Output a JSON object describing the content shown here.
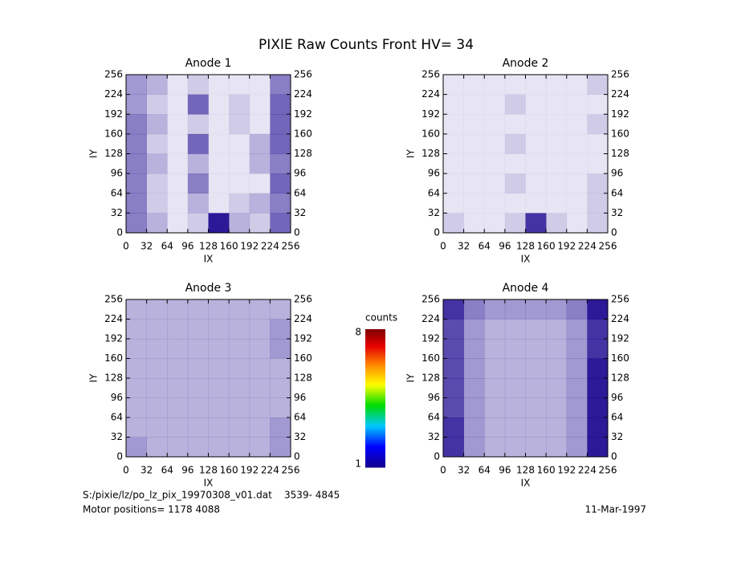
{
  "title": "PIXIE Raw Counts Front HV= 34",
  "chart_data": [
    {
      "type": "heatmap",
      "title": "Anode 1",
      "xlabel": "IX",
      "ylabel": "IY",
      "xlim": [
        0,
        256
      ],
      "ylim": [
        0,
        256
      ],
      "xticks": [
        0,
        32,
        64,
        96,
        128,
        160,
        192,
        224,
        256
      ],
      "yticks": [
        0,
        32,
        64,
        96,
        128,
        160,
        192,
        224,
        256
      ],
      "z": [
        [
          0.5,
          0.3,
          0.1,
          0.2,
          0.9,
          0.3,
          0.2,
          0.6
        ],
        [
          0.5,
          0.2,
          0.1,
          0.3,
          0.1,
          0.2,
          0.3,
          0.5
        ],
        [
          0.5,
          0.2,
          0.1,
          0.5,
          0.1,
          0.1,
          0.1,
          0.6
        ],
        [
          0.5,
          0.3,
          0.1,
          0.3,
          0.1,
          0.1,
          0.3,
          0.5
        ],
        [
          0.5,
          0.2,
          0.1,
          0.6,
          0.1,
          0.1,
          0.3,
          0.6
        ],
        [
          0.5,
          0.3,
          0.1,
          0.2,
          0.1,
          0.2,
          0.1,
          0.6
        ],
        [
          0.4,
          0.2,
          0.1,
          0.6,
          0.1,
          0.2,
          0.1,
          0.6
        ],
        [
          0.4,
          0.3,
          0.1,
          0.2,
          0.1,
          0.1,
          0.1,
          0.5
        ]
      ]
    },
    {
      "type": "heatmap",
      "title": "Anode 2",
      "xlabel": "IX",
      "ylabel": "IY",
      "xlim": [
        0,
        256
      ],
      "ylim": [
        0,
        256
      ],
      "xticks": [
        0,
        32,
        64,
        96,
        128,
        160,
        192,
        224,
        256
      ],
      "yticks": [
        0,
        32,
        64,
        96,
        128,
        160,
        192,
        224,
        256
      ],
      "z": [
        [
          0.2,
          0.1,
          0.1,
          0.2,
          0.8,
          0.2,
          0.1,
          0.2
        ],
        [
          0.1,
          0.1,
          0.1,
          0.1,
          0.1,
          0.1,
          0.1,
          0.2
        ],
        [
          0.1,
          0.1,
          0.1,
          0.2,
          0.1,
          0.1,
          0.1,
          0.2
        ],
        [
          0.1,
          0.1,
          0.1,
          0.1,
          0.1,
          0.1,
          0.1,
          0.1
        ],
        [
          0.1,
          0.1,
          0.1,
          0.2,
          0.1,
          0.1,
          0.1,
          0.1
        ],
        [
          0.1,
          0.1,
          0.1,
          0.1,
          0.1,
          0.1,
          0.1,
          0.2
        ],
        [
          0.1,
          0.1,
          0.1,
          0.2,
          0.1,
          0.1,
          0.1,
          0.1
        ],
        [
          0.1,
          0.1,
          0.1,
          0.1,
          0.1,
          0.1,
          0.1,
          0.2
        ]
      ]
    },
    {
      "type": "heatmap",
      "title": "Anode 3",
      "xlabel": "IX",
      "ylabel": "IY",
      "xlim": [
        0,
        256
      ],
      "ylim": [
        0,
        256
      ],
      "xticks": [
        0,
        32,
        64,
        96,
        128,
        160,
        192,
        224,
        256
      ],
      "yticks": [
        0,
        32,
        64,
        96,
        128,
        160,
        192,
        224,
        256
      ],
      "z": [
        [
          0.4,
          0.3,
          0.3,
          0.3,
          0.3,
          0.3,
          0.3,
          0.4
        ],
        [
          0.3,
          0.3,
          0.3,
          0.3,
          0.3,
          0.3,
          0.3,
          0.4
        ],
        [
          0.3,
          0.3,
          0.3,
          0.3,
          0.3,
          0.3,
          0.3,
          0.3
        ],
        [
          0.3,
          0.3,
          0.3,
          0.3,
          0.3,
          0.3,
          0.3,
          0.3
        ],
        [
          0.3,
          0.3,
          0.3,
          0.3,
          0.3,
          0.3,
          0.3,
          0.3
        ],
        [
          0.3,
          0.3,
          0.3,
          0.3,
          0.3,
          0.3,
          0.3,
          0.4
        ],
        [
          0.3,
          0.3,
          0.3,
          0.3,
          0.3,
          0.3,
          0.3,
          0.4
        ],
        [
          0.3,
          0.3,
          0.3,
          0.3,
          0.3,
          0.3,
          0.3,
          0.3
        ]
      ]
    },
    {
      "type": "heatmap",
      "title": "Anode 4",
      "xlabel": "IX",
      "ylabel": "IY",
      "xlim": [
        0,
        256
      ],
      "ylim": [
        0,
        256
      ],
      "xticks": [
        0,
        32,
        64,
        96,
        128,
        160,
        192,
        224,
        256
      ],
      "yticks": [
        0,
        32,
        64,
        96,
        128,
        160,
        192,
        224,
        256
      ],
      "z": [
        [
          0.8,
          0.4,
          0.3,
          0.3,
          0.3,
          0.3,
          0.4,
          0.9
        ],
        [
          0.8,
          0.4,
          0.3,
          0.3,
          0.3,
          0.3,
          0.4,
          0.9
        ],
        [
          0.7,
          0.4,
          0.3,
          0.3,
          0.3,
          0.3,
          0.4,
          0.9
        ],
        [
          0.7,
          0.4,
          0.3,
          0.3,
          0.3,
          0.3,
          0.4,
          0.9
        ],
        [
          0.7,
          0.4,
          0.3,
          0.3,
          0.3,
          0.3,
          0.4,
          0.9
        ],
        [
          0.7,
          0.4,
          0.3,
          0.3,
          0.3,
          0.3,
          0.4,
          0.8
        ],
        [
          0.7,
          0.4,
          0.3,
          0.3,
          0.3,
          0.3,
          0.4,
          0.8
        ],
        [
          0.8,
          0.5,
          0.4,
          0.4,
          0.4,
          0.4,
          0.5,
          0.9
        ]
      ]
    }
  ],
  "colorbar": {
    "label": "counts",
    "lim": [
      1,
      8
    ],
    "ticks": [
      1,
      8
    ]
  },
  "footer": {
    "file": "S:/pixie/lz/po_lz_pix_19970308_v01.dat    3539- 4845",
    "motor": "Motor positions= 1178 4088",
    "date": "11-Mar-1997"
  }
}
